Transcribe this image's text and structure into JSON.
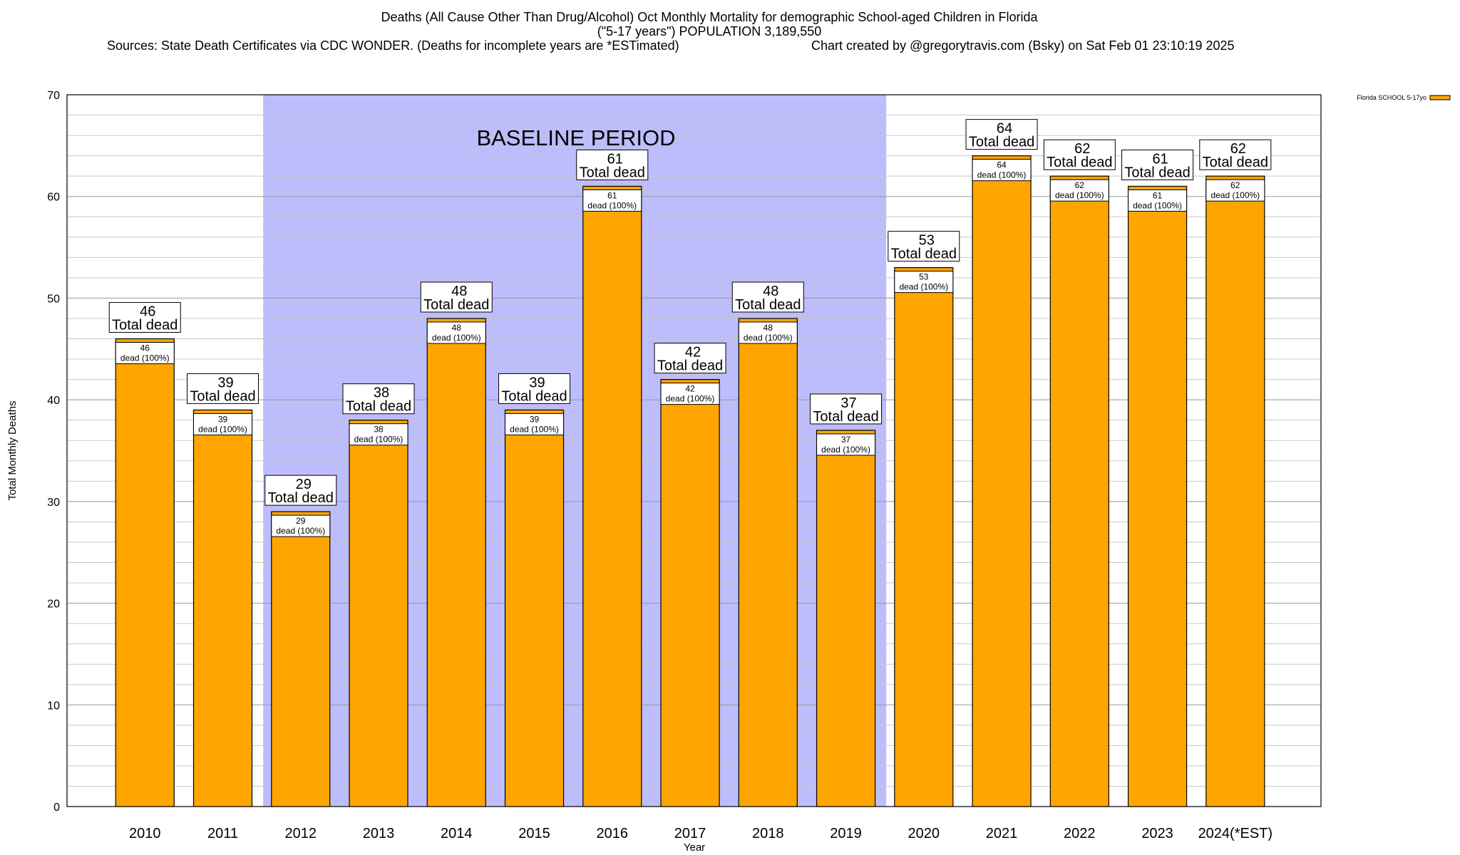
{
  "title": "Deaths (All Cause Other Than Drug/Alcohol) Oct Monthly Mortality for demographic School-aged Children in Florida",
  "subtitle": "(\"5-17 years\") POPULATION 3,189,550",
  "sources": "Sources: State Death Certificates via CDC WONDER. (Deaths for incomplete years are *ESTimated)",
  "credit": "Chart created by @gregorytravis.com (Bsky) on Sat Feb 01 23:10:19 2025",
  "colors": {
    "bar": "#FFA500",
    "baseline_band": "#BDBDFB",
    "grid": "#c8c8c8"
  },
  "chart_data": {
    "type": "bar",
    "xlabel": "Year",
    "ylabel": "Total Monthly Deaths",
    "ylim": [
      0,
      70
    ],
    "yticks": [
      "0",
      "10",
      "20",
      "30",
      "40",
      "50",
      "60",
      "70"
    ],
    "categories": [
      "2010",
      "2011",
      "2012",
      "2013",
      "2014",
      "2015",
      "2016",
      "2017",
      "2018",
      "2019",
      "2020",
      "2021",
      "2022",
      "2023",
      "2024(*EST)"
    ],
    "series": [
      {
        "name": "Florida SCHOOL 5-17yo",
        "values": [
          46,
          39,
          29,
          38,
          48,
          39,
          61,
          42,
          48,
          37,
          53,
          64,
          62,
          61,
          62
        ]
      }
    ],
    "baseline": {
      "label": "BASELINE PERIOD",
      "from": "2012",
      "to": "2019"
    },
    "total_label": "Total dead",
    "inner_label": "dead (100%)",
    "legend": "top-right",
    "grid": true
  }
}
